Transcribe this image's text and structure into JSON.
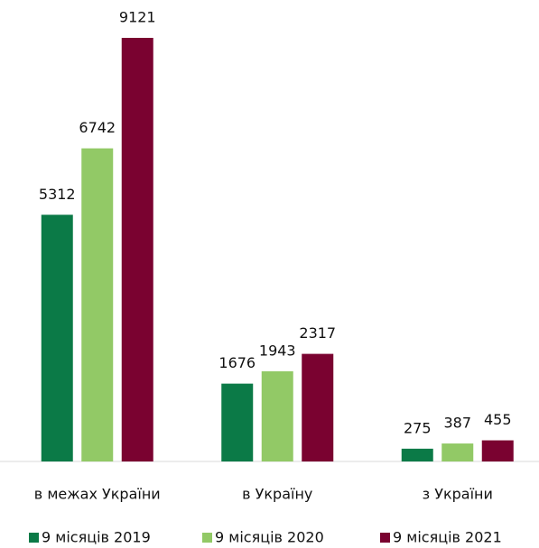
{
  "chart_data": {
    "type": "bar",
    "categories": [
      "в межах України",
      "в Україну",
      "з України"
    ],
    "series": [
      {
        "name": "9 місяців 2019",
        "color": "#0b7a47",
        "values": [
          5312,
          1676,
          275
        ]
      },
      {
        "name": "9 місяців 2020",
        "color": "#92c966",
        "values": [
          6742,
          1943,
          387
        ]
      },
      {
        "name": "9 місяців 2021",
        "color": "#7a0230",
        "values": [
          9121,
          2317,
          455
        ]
      }
    ],
    "legend": "bottom"
  }
}
